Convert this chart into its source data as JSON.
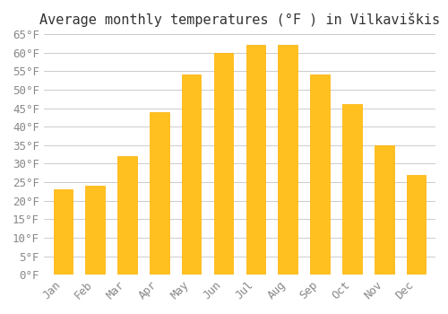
{
  "title": "Average monthly temperatures (°F ) in Vilkaviškis",
  "months": [
    "Jan",
    "Feb",
    "Mar",
    "Apr",
    "May",
    "Jun",
    "Jul",
    "Aug",
    "Sep",
    "Oct",
    "Nov",
    "Dec"
  ],
  "values": [
    23,
    24,
    32,
    44,
    54,
    60,
    62,
    62,
    54,
    46,
    35,
    27
  ],
  "bar_color": "#FFC020",
  "bar_edge_color": "#FFB000",
  "background_color": "#FFFFFF",
  "grid_color": "#CCCCCC",
  "ylim": [
    0,
    65
  ],
  "yticks": [
    0,
    5,
    10,
    15,
    20,
    25,
    30,
    35,
    40,
    45,
    50,
    55,
    60,
    65
  ],
  "title_fontsize": 11,
  "tick_fontsize": 9,
  "tick_color": "#888888",
  "axis_color": "#AAAAAA"
}
